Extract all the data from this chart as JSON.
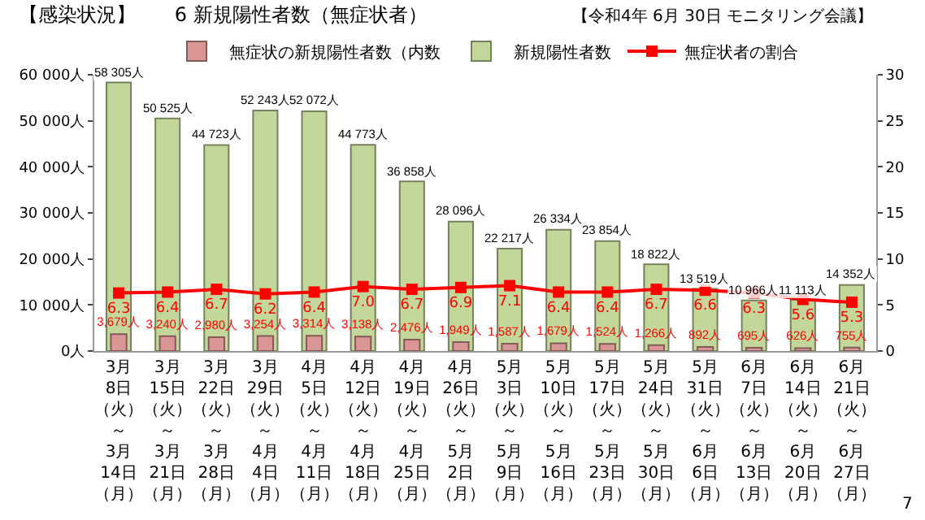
{
  "chart_data": {
    "type": "bar",
    "title": "【感染状況】　　6 新規陽性者数（無症状者）",
    "annotations": [
      "【令和4年 6月 30日 モニタリング会議】",
      "7"
    ],
    "categories": [
      "3月8日（火）～3月14日（月）",
      "3月15日（火）～3月21日（月）",
      "3月22日（火）～3月28日（月）",
      "3月29日（火）～4月4日（月）",
      "4月5日（火）～4月11日（月）",
      "4月12日（火）～4月18日（月）",
      "4月19日（火）～4月25日（月）",
      "4月26日（火）～5月2日（月）",
      "5月3日（火）～5月9日（月）",
      "5月10日（火）～5月16日（月）",
      "5月17日（火）～5月23日（月）",
      "5月24日（火）～5月30日（月）",
      "5月31日（火）～6月6日（月）",
      "6月7日（火）～6月13日（月）",
      "6月14日（火）～6月20日（月）",
      "6月21日（火）～6月27日（月）"
    ],
    "series": [
      {
        "name": "無症状の新規陽性者数（内数",
        "color": "#d99694",
        "values": [
          3679,
          3240,
          2980,
          3254,
          3314,
          3138,
          2476,
          1949,
          1587,
          1679,
          1524,
          1266,
          892,
          695,
          626,
          755
        ],
        "value_labels": [
          "3,679人",
          "3,240人",
          "2,980人",
          "3,254人",
          "3,314人",
          "3,138人",
          "2,476人",
          "1,949人",
          "1,587人",
          "1,679人",
          "1,524人",
          "1,266人",
          "892人",
          "695人",
          "626人",
          "755人"
        ]
      },
      {
        "name": "新規陽性者数",
        "color": "#c4d79b",
        "values": [
          58305,
          50525,
          44723,
          52243,
          52072,
          44773,
          36858,
          28096,
          22217,
          26334,
          23854,
          18822,
          13519,
          10966,
          11113,
          14352
        ],
        "value_labels": [
          "58 305人",
          "50 525人",
          "44 723人",
          "52 243人",
          "52 072人",
          "44 773人",
          "36 858人",
          "28 096人",
          "22 217人",
          "26 334人",
          "23 854人",
          "18 822人",
          "13 519人",
          "10 966人",
          "11 113人",
          "14 352人"
        ]
      },
      {
        "name": "無症状者の割合",
        "type": "line",
        "axis": "y2",
        "color": "#ff0000",
        "values": [
          6.3,
          6.4,
          6.7,
          6.2,
          6.4,
          7.0,
          6.7,
          6.9,
          7.1,
          6.4,
          6.4,
          6.7,
          6.6,
          6.3,
          5.6,
          5.3
        ],
        "value_labels": [
          "6.3",
          "6.4",
          "6.7",
          "6.2",
          "6.4",
          "7.0",
          "6.7",
          "6.9",
          "7.1",
          "6.4",
          "6.4",
          "6.7",
          "6.6",
          "6.3",
          "5.6",
          "5.3"
        ]
      }
    ],
    "ylim": [
      0,
      60000
    ],
    "yticks": [
      {
        "value": 0,
        "label": "0人"
      },
      {
        "value": 10000,
        "label": "10 000人"
      },
      {
        "value": 20000,
        "label": "20 000人"
      },
      {
        "value": 30000,
        "label": "30 000人"
      },
      {
        "value": 40000,
        "label": "40 000人"
      },
      {
        "value": 50000,
        "label": "50 000人"
      },
      {
        "value": 60000,
        "label": "60 000人"
      }
    ],
    "y2lim": [
      0,
      30
    ],
    "y2ticks": [
      0,
      5,
      10,
      15,
      20,
      25,
      30
    ],
    "marker": "square",
    "line_style": "solid",
    "legend": "top"
  }
}
